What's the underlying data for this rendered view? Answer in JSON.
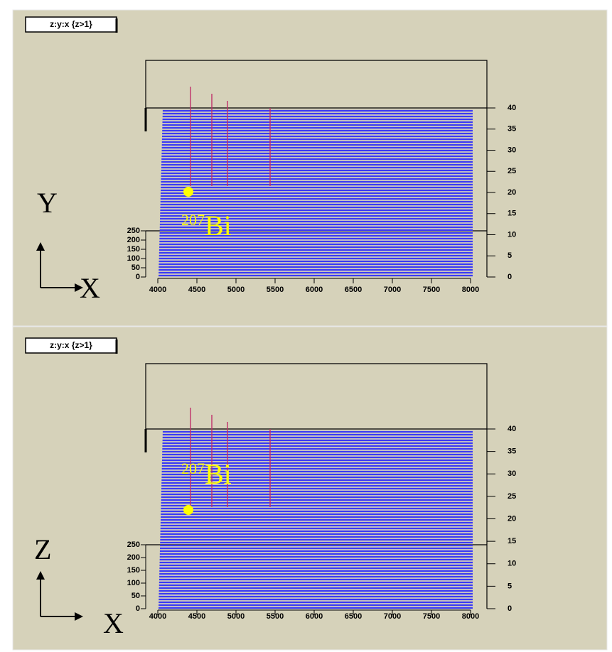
{
  "panels": [
    {
      "title": "z:y:x {z>1}",
      "x_ticks": [
        4000,
        4500,
        5000,
        5500,
        6000,
        6500,
        7000,
        7500,
        8000
      ],
      "right_ticks": [
        0,
        5,
        10,
        15,
        20,
        25,
        30,
        35,
        40
      ],
      "left_ticks": [
        0,
        50,
        100,
        150,
        200,
        250
      ],
      "vertical_axis": "Y",
      "horizontal_axis": "X",
      "annotation": {
        "mass": "207",
        "element": "Bi"
      }
    },
    {
      "title": "z:y:x {z>1}",
      "x_ticks": [
        4000,
        4500,
        5000,
        5500,
        6000,
        6500,
        7000,
        7500,
        8000
      ],
      "right_ticks": [
        0,
        5,
        10,
        15,
        20,
        25,
        30,
        35,
        40
      ],
      "left_ticks": [
        0,
        50,
        100,
        150,
        200,
        250
      ],
      "vertical_axis": "Z",
      "horizontal_axis": "X",
      "annotation": {
        "mass": "207",
        "element": "Bi"
      }
    }
  ]
}
